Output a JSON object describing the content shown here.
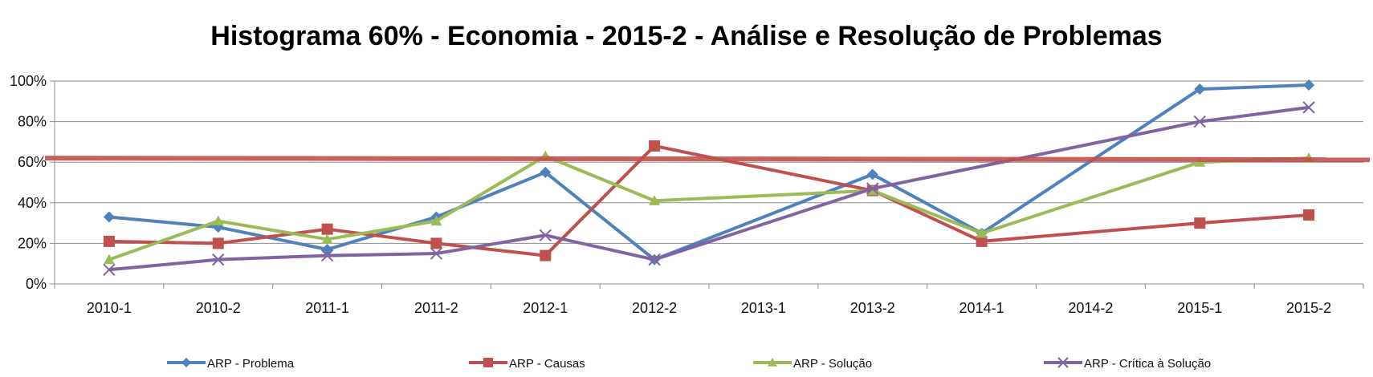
{
  "chart_data": {
    "type": "line",
    "title": "Histograma 60% - Economia - 2015-2 - Análise e Resolução de Problemas",
    "xlabel": "",
    "ylabel": "",
    "categories": [
      "2010-1",
      "2010-2",
      "2011-1",
      "2011-2",
      "2012-1",
      "2012-2",
      "2013-1",
      "2013-2",
      "2014-1",
      "2014-2",
      "2015-1",
      "2015-2"
    ],
    "y_ticks": [
      "0%",
      "20%",
      "40%",
      "60%",
      "80%",
      "100%"
    ],
    "ylim": [
      0,
      100
    ],
    "grid": true,
    "legend_position": "bottom",
    "threshold": {
      "value": 62,
      "color": "#C0504D"
    },
    "series": [
      {
        "name": "ARP  - Problema",
        "color": "#4F81BD",
        "marker": "diamond",
        "values": [
          33,
          28,
          17,
          33,
          55,
          12,
          null,
          54,
          25,
          null,
          96,
          98
        ]
      },
      {
        "name": "ARP  - Causas",
        "color": "#C0504D",
        "marker": "square",
        "values": [
          21,
          20,
          27,
          20,
          14,
          68,
          null,
          46,
          21,
          null,
          30,
          34
        ]
      },
      {
        "name": "ARP  - Solução",
        "color": "#9BBB59",
        "marker": "triangle",
        "values": [
          12,
          31,
          22,
          31,
          63,
          41,
          null,
          46,
          25,
          null,
          60,
          62
        ]
      },
      {
        "name": "ARP  - Crítica à Solução",
        "color": "#8064A2",
        "marker": "x",
        "values": [
          7,
          12,
          14,
          15,
          24,
          12,
          null,
          47,
          null,
          null,
          80,
          87
        ]
      }
    ]
  }
}
